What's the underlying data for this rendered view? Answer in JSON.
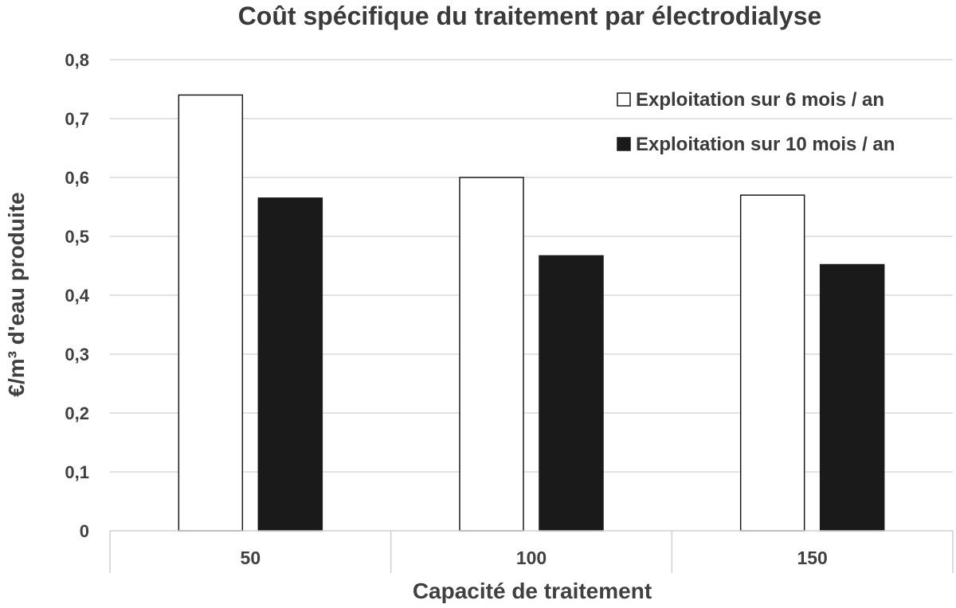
{
  "chart_data": {
    "type": "bar",
    "title": "Coût spécifique du traitement par électrodialyse",
    "xlabel": "Capacité de traitement",
    "ylabel": "€/m³ d'eau produite",
    "categories": [
      "50",
      "100",
      "150"
    ],
    "series": [
      {
        "name": "Exploitation sur 6 mois / an",
        "values": [
          0.74,
          0.6,
          0.57
        ],
        "color": "#ffffff"
      },
      {
        "name": "Exploitation sur 10 mois / an",
        "values": [
          0.565,
          0.467,
          0.452
        ],
        "color": "#1a1a1a"
      }
    ],
    "ylim": [
      0,
      0.8
    ],
    "yticks": [
      0,
      0.1,
      0.2,
      0.3,
      0.4,
      0.5,
      0.6,
      0.7,
      0.8
    ],
    "ytick_labels": [
      "0",
      "0,1",
      "0,2",
      "0,3",
      "0,4",
      "0,5",
      "0,6",
      "0,7",
      "0,8"
    ],
    "grid": true,
    "legend_position": "top-right"
  }
}
